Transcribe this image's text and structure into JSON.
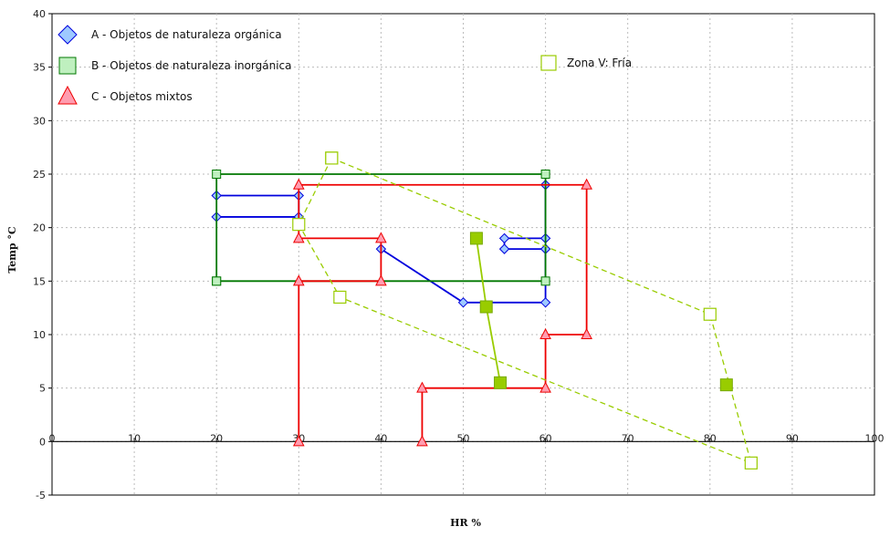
{
  "chart_data": {
    "type": "line",
    "title": "",
    "xlabel": "HR %",
    "ylabel": "Temp °C",
    "xlim": [
      0,
      100
    ],
    "ylim": [
      -5,
      40
    ],
    "xticks": [
      0,
      10,
      20,
      30,
      40,
      50,
      60,
      70,
      80,
      90,
      100
    ],
    "yticks": [
      -5,
      0,
      5,
      10,
      15,
      20,
      25,
      30,
      35,
      40
    ],
    "grid": true,
    "legend": "top-left",
    "series": [
      {
        "name": "A -  Objetos de naturaleza orgánica",
        "color": "#0000dd",
        "marker": "diamond",
        "marker_fill": "#9ec9ff",
        "dashed": false,
        "segments": [
          [
            [
              20,
              23
            ],
            [
              30,
              23
            ],
            [
              30,
              21
            ],
            [
              20,
              21
            ]
          ],
          [
            [
              40,
              18
            ],
            [
              50,
              13
            ],
            [
              60,
              13
            ],
            [
              60,
              18
            ],
            [
              55,
              18
            ],
            [
              55,
              19
            ],
            [
              60,
              19
            ],
            [
              60,
              24
            ]
          ]
        ]
      },
      {
        "name": "B - Objetos de naturaleza inorgánica",
        "color": "#007700",
        "marker": "square",
        "marker_fill": "#bff0bf",
        "dashed": false,
        "segments": [
          [
            [
              20,
              15
            ],
            [
              20,
              25
            ],
            [
              60,
              25
            ],
            [
              60,
              15
            ],
            [
              20,
              15
            ]
          ]
        ]
      },
      {
        "name": "C - Objetos mixtos",
        "color": "#ee0000",
        "marker": "triangle",
        "marker_fill": "#ff9db0",
        "dashed": false,
        "segments": [
          [
            [
              30,
              0
            ],
            [
              30,
              15
            ],
            [
              40,
              15
            ],
            [
              40,
              19
            ],
            [
              30,
              19
            ],
            [
              30,
              24
            ],
            [
              65,
              24
            ],
            [
              65,
              10
            ],
            [
              60,
              10
            ],
            [
              60,
              5
            ],
            [
              45,
              5
            ],
            [
              45,
              0
            ]
          ]
        ]
      },
      {
        "name": "Zona V: Fría",
        "color": "#99cc00",
        "marker": "open-square",
        "marker_fill": "#ffffff",
        "dashed": true,
        "segments": [
          [
            [
              34,
              26.5
            ],
            [
              80,
              11.9
            ],
            [
              85,
              -2
            ],
            [
              35,
              13.5
            ],
            [
              30,
              20.3
            ],
            [
              34,
              26.5
            ]
          ]
        ]
      },
      {
        "name": "",
        "color": "#99cc00",
        "marker": "filled-square",
        "marker_fill": "#99cc00",
        "dashed": false,
        "segments": [
          [
            [
              51.6,
              19
            ],
            [
              52.8,
              12.6
            ],
            [
              54.5,
              5.5
            ]
          ],
          [
            [
              82,
              5.3
            ]
          ]
        ]
      }
    ]
  }
}
